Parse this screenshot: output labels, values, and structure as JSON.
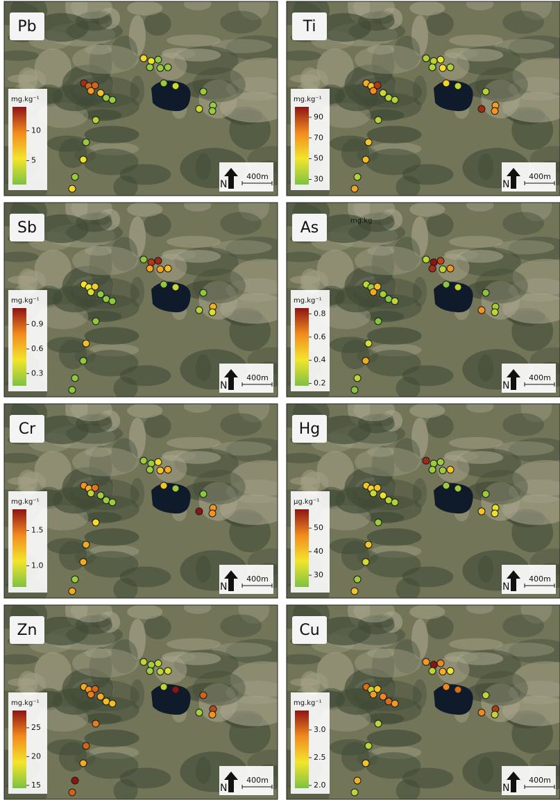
{
  "colors": [
    "#7cc242",
    "#f3e52c",
    "#f28b1e",
    "#8e1414"
  ],
  "panels": [
    {
      "element": "Pb",
      "unit": "mg.kg⁻¹",
      "range": [
        1,
        14
      ],
      "ticks": [
        5,
        10
      ],
      "scale_label": "400m",
      "north": "N",
      "values": [
        6,
        5,
        2,
        2,
        2,
        2,
        2,
        4,
        2,
        2,
        2,
        4,
        13,
        11,
        11,
        9,
        7,
        2,
        2,
        3,
        2,
        5,
        2,
        6
      ]
    },
    {
      "element": "Ti",
      "unit": "mg.kg⁻¹",
      "range": [
        25,
        100
      ],
      "ticks": [
        30,
        50,
        70,
        90
      ],
      "scale_label": "400m",
      "north": "N",
      "values": [
        35,
        38,
        48,
        36,
        52,
        36,
        55,
        40,
        36,
        70,
        72,
        95,
        65,
        60,
        92,
        75,
        40,
        38,
        36,
        38,
        58,
        62,
        36,
        68
      ]
    },
    {
      "element": "Sb",
      "unit": "mg.kg⁻¹",
      "range": [
        0.15,
        1.1
      ],
      "ticks": [
        0.3,
        0.6,
        0.9
      ],
      "scale_label": "400m",
      "north": "N",
      "values": [
        0.2,
        1.0,
        1.05,
        0.7,
        0.7,
        0.6,
        0.2,
        0.35,
        0.2,
        0.65,
        0.4,
        0.3,
        0.45,
        0.45,
        0.55,
        0.4,
        0.2,
        0.2,
        0.2,
        0.2,
        0.6,
        0.2,
        0.2,
        0.2
      ]
    },
    {
      "element": "As",
      "unit": "mg.kg⁻¹",
      "range": [
        0.18,
        0.85
      ],
      "ticks": [
        0.2,
        0.4,
        0.6,
        0.8
      ],
      "scale_label": "400m",
      "north": "N",
      "stray_label": "mg.kg",
      "values": [
        0.3,
        0.85,
        0.75,
        0.8,
        0.3,
        0.6,
        0.2,
        0.3,
        0.2,
        0.25,
        0.3,
        0.6,
        0.3,
        0.25,
        0.5,
        0.55,
        0.25,
        0.2,
        0.3,
        0.2,
        0.35,
        0.55,
        0.3,
        0.2
      ]
    },
    {
      "element": "Cr",
      "unit": "mg.kg⁻¹",
      "range": [
        0.7,
        1.8
      ],
      "ticks": [
        {
          "value": 1.0,
          "label": "1.0"
        },
        1.5
      ],
      "scale_label": "400m",
      "north": "N",
      "values": [
        0.8,
        0.8,
        1.1,
        0.8,
        1.2,
        1.3,
        1.2,
        0.8,
        0.75,
        1.4,
        1.4,
        1.8,
        1.4,
        1.3,
        1.5,
        0.9,
        0.8,
        0.8,
        0.8,
        1.1,
        1.3,
        1.3,
        0.8,
        1.3
      ]
    },
    {
      "element": "Hg",
      "unit": "µg.kg⁻¹",
      "range": [
        25,
        58
      ],
      "ticks": [
        30,
        40,
        50
      ],
      "scale_label": "400m",
      "north": "N",
      "values": [
        56,
        28,
        28,
        28,
        28,
        40,
        28,
        28,
        28,
        35,
        35,
        40,
        40,
        38,
        40,
        32,
        35,
        30,
        30,
        28,
        40,
        33,
        28,
        40
      ]
    },
    {
      "element": "Zn",
      "unit": "mg.kg⁻¹",
      "range": [
        14.5,
        28
      ],
      "ticks": [
        15,
        20,
        25
      ],
      "scale_label": "400m",
      "north": "N",
      "values": [
        17,
        16,
        17,
        16,
        17,
        18,
        17,
        28,
        25,
        26,
        23,
        16,
        22,
        23,
        25,
        24,
        22,
        21,
        21,
        24,
        25,
        22,
        28,
        25
      ]
    },
    {
      "element": "Cu",
      "unit": "mg.kg⁻¹",
      "range": [
        1.95,
        3.35
      ],
      "ticks": [
        {
          "value": 2.0,
          "label": "2.0"
        },
        2.5,
        {
          "value": 3.0,
          "label": "3.0"
        }
      ],
      "scale_label": "400m",
      "north": "N",
      "values": [
        2.8,
        3.35,
        2.9,
        2.2,
        2.7,
        2.4,
        2.9,
        3.0,
        2.2,
        3.2,
        2.2,
        2.9,
        3.0,
        2.2,
        2.6,
        2.8,
        2.9,
        3.0,
        2.8,
        2.2,
        2.2,
        2.6,
        2.7,
        2.2
      ]
    }
  ]
}
